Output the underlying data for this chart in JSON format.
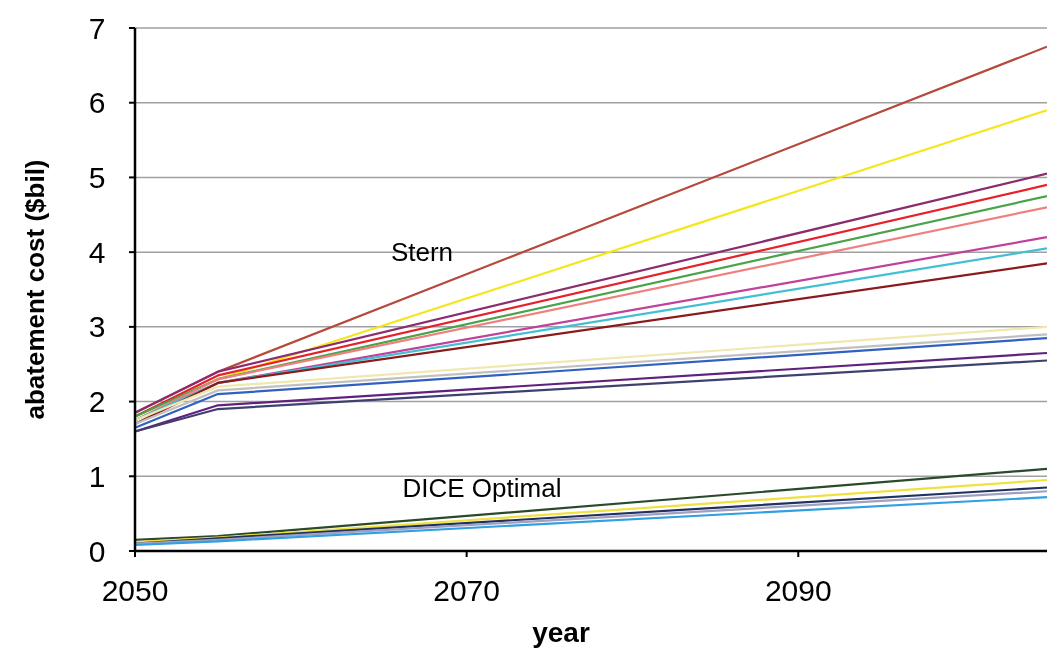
{
  "chart_data": {
    "type": "line",
    "xlabel": "year",
    "ylabel": "abatement cost ($bil)",
    "xlim": [
      2050,
      2105
    ],
    "xticks": [
      2050,
      2070,
      2090
    ],
    "ylim": [
      0,
      7
    ],
    "yticks": [
      0,
      1,
      2,
      3,
      4,
      5,
      6,
      7
    ],
    "grid": "y",
    "marker": "none",
    "line_style": "solid",
    "x": [
      2050,
      2055,
      2105
    ],
    "series": [
      {
        "color": "#b5493a",
        "values": [
          1.85,
          2.4,
          6.75
        ]
      },
      {
        "color": "#f5e61c",
        "values": [
          1.8,
          2.3,
          5.9
        ]
      },
      {
        "color": "#8b2c6e",
        "values": [
          1.85,
          2.4,
          5.05
        ]
      },
      {
        "color": "#e8202a",
        "values": [
          1.8,
          2.35,
          4.9
        ]
      },
      {
        "color": "#4aa34a",
        "values": [
          1.8,
          2.3,
          4.75
        ]
      },
      {
        "color": "#f08080",
        "values": [
          1.75,
          2.3,
          4.6
        ]
      },
      {
        "color": "#c0409a",
        "values": [
          1.75,
          2.25,
          4.2
        ]
      },
      {
        "color": "#40c0d0",
        "values": [
          1.75,
          2.25,
          4.05
        ]
      },
      {
        "color": "#8b1a1a",
        "values": [
          1.7,
          2.25,
          3.85
        ]
      },
      {
        "color": "#f0e8b0",
        "values": [
          1.75,
          2.2,
          3.0
        ]
      },
      {
        "color": "#c0c0c0",
        "values": [
          1.7,
          2.15,
          2.9
        ]
      },
      {
        "color": "#3060c0",
        "values": [
          1.65,
          2.1,
          2.85
        ]
      },
      {
        "color": "#602080",
        "values": [
          1.6,
          1.95,
          2.65
        ]
      },
      {
        "color": "#404070",
        "values": [
          1.6,
          1.9,
          2.55
        ]
      },
      {
        "color": "#2a4a2a",
        "values": [
          0.15,
          0.2,
          1.1
        ]
      },
      {
        "color": "#f0e040",
        "values": [
          0.12,
          0.18,
          0.95
        ]
      },
      {
        "color": "#203060",
        "values": [
          0.1,
          0.17,
          0.85
        ]
      },
      {
        "color": "#a0a0c0",
        "values": [
          0.1,
          0.15,
          0.8
        ]
      },
      {
        "color": "#30a0e0",
        "values": [
          0.08,
          0.13,
          0.72
        ]
      }
    ],
    "annotations": [
      "Stern",
      "DICE Optimal"
    ]
  }
}
